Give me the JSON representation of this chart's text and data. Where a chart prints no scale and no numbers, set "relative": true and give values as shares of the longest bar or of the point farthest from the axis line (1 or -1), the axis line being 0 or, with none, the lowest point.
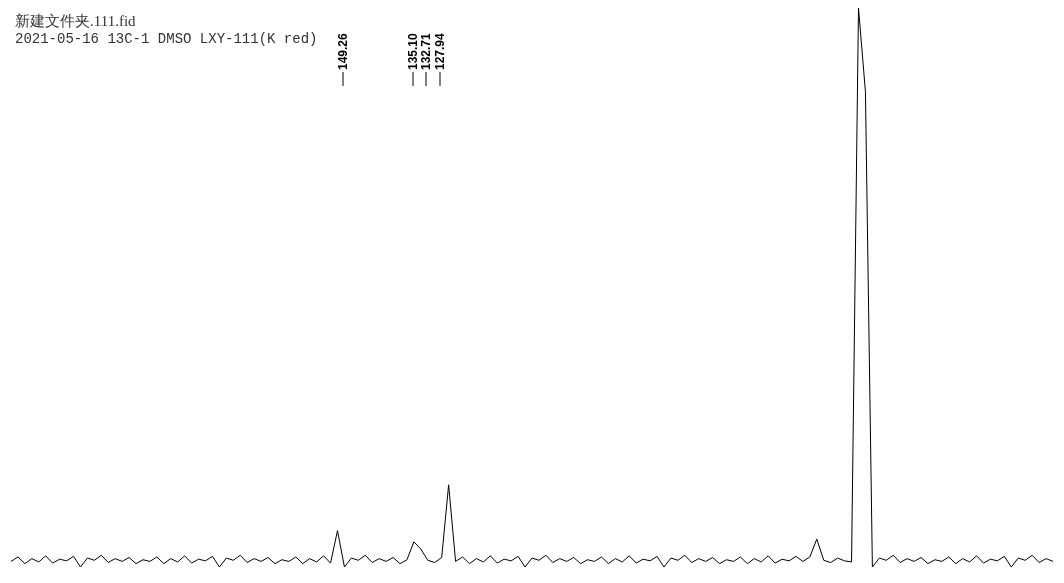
{
  "chart_data": {
    "type": "line",
    "title": "新建文件夹.111.fid",
    "subtitle": "2021-05-16 13C-1 DMSO LXY-111(K red)",
    "relative": true,
    "marker": "none",
    "line_style": "solid",
    "annotations": [
      "149.26",
      "135.10",
      "132.71",
      "127.94"
    ],
    "categories": [
      null,
      null,
      null,
      null,
      null,
      null,
      null,
      null,
      null,
      null,
      null,
      null,
      null,
      null,
      null,
      null,
      null,
      null,
      null,
      null,
      null,
      null,
      null,
      null,
      null,
      null,
      null,
      null,
      null,
      null,
      null,
      null,
      null,
      null,
      null,
      null,
      null,
      null,
      null,
      null,
      null,
      null,
      null,
      null,
      null,
      null,
      null,
      null,
      null,
      null,
      null,
      null,
      null,
      null,
      null,
      null,
      null,
      null,
      null,
      null,
      null,
      null,
      null,
      null,
      null,
      null,
      null,
      null,
      null,
      null,
      null,
      null,
      null,
      null,
      null,
      null,
      null,
      null,
      null,
      null,
      null,
      null,
      null,
      null,
      null,
      null,
      null,
      null,
      null,
      null,
      null,
      null,
      null,
      null,
      null,
      null,
      null,
      null,
      null,
      null,
      null,
      null,
      null,
      null,
      null,
      null,
      null,
      null,
      null,
      null,
      null,
      null,
      null,
      null,
      null,
      null,
      null,
      null,
      null,
      null,
      null,
      null,
      null,
      null,
      null,
      null,
      null,
      null,
      null,
      null,
      null,
      null,
      null,
      null,
      null,
      null,
      null,
      null,
      null,
      null,
      null,
      null,
      null,
      null,
      null,
      null,
      null,
      null,
      null,
      null,
      null
    ],
    "series": [
      {
        "color": "#000000",
        "values": [
          0.01,
          0.018,
          0.006,
          0.015,
          0.009,
          0.02,
          0.007,
          0.014,
          0.011,
          0.019,
          0,
          0.016,
          0.012,
          0.021,
          0.008,
          0.015,
          0.01,
          0.017,
          0.006,
          0.013,
          0.01,
          0.018,
          0.006,
          0.015,
          0.009,
          0.02,
          0.007,
          0.014,
          0.011,
          0.019,
          0,
          0.016,
          0.012,
          0.021,
          0.008,
          0.015,
          0.01,
          0.017,
          0.006,
          0.013,
          0.01,
          0.018,
          0.006,
          0.015,
          0.009,
          0.02,
          0.007,
          0.065,
          0,
          0.016,
          0.012,
          0.021,
          0.008,
          0.015,
          0.01,
          0.017,
          0.006,
          0.013,
          0.045,
          0.032,
          0.012,
          0.008,
          0.017,
          0.147,
          0.01,
          0.018,
          0.006,
          0.015,
          0.009,
          0.02,
          0.007,
          0.014,
          0.011,
          0.019,
          0,
          0.016,
          0.012,
          0.021,
          0.008,
          0.015,
          0.01,
          0.017,
          0.006,
          0.013,
          0.01,
          0.018,
          0.006,
          0.015,
          0.009,
          0.02,
          0.007,
          0.014,
          0.011,
          0.019,
          0,
          0.016,
          0.012,
          0.021,
          0.008,
          0.015,
          0.01,
          0.017,
          0.006,
          0.013,
          0.01,
          0.018,
          0.006,
          0.015,
          0.009,
          0.02,
          0.007,
          0.014,
          0.011,
          0.019,
          0.01,
          0.018,
          0.05,
          0.012,
          0.008,
          0.016,
          0.011,
          0.009,
          1,
          0.85,
          0,
          0.016,
          0.012,
          0.021,
          0.008,
          0.015,
          0.01,
          0.017,
          0.006,
          0.013,
          0.01,
          0.018,
          0.006,
          0.015,
          0.009,
          0.02,
          0.007,
          0.014,
          0.011,
          0.019,
          0,
          0.016,
          0.012,
          0.021,
          0.008,
          0.015,
          0.01
        ]
      }
    ]
  }
}
